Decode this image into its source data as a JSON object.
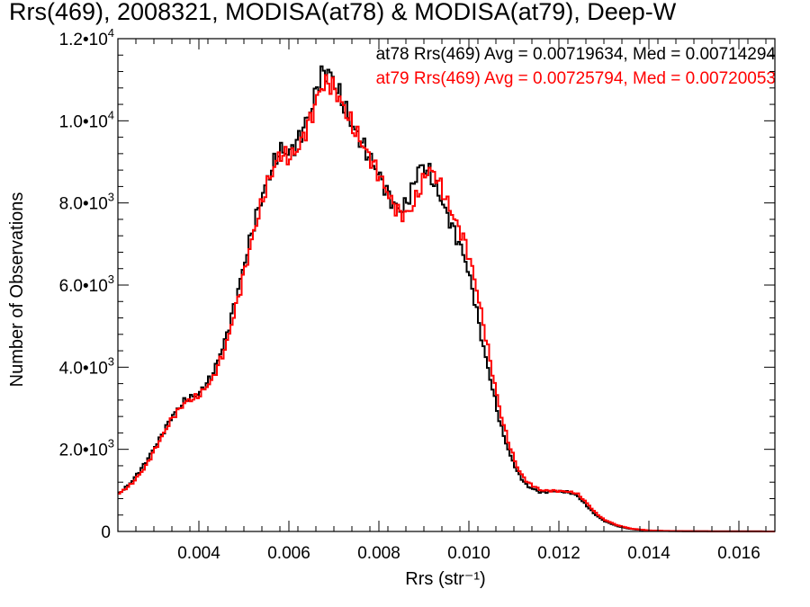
{
  "chart_data": {
    "type": "line",
    "title": "Rrs(469), 2008321, MODISA(at78) & MODISA(at79), Deep-W",
    "xlabel": "Rrs (str⁻¹)",
    "ylabel": "Number of Observations",
    "xlim": [
      0.0022,
      0.0168
    ],
    "ylim": [
      0,
      12000
    ],
    "x_ticks": [
      {
        "v": 0.004,
        "label": "0.004"
      },
      {
        "v": 0.006,
        "label": "0.006"
      },
      {
        "v": 0.008,
        "label": "0.008"
      },
      {
        "v": 0.01,
        "label": "0.010"
      },
      {
        "v": 0.012,
        "label": "0.012"
      },
      {
        "v": 0.014,
        "label": "0.014"
      },
      {
        "v": 0.016,
        "label": "0.016"
      }
    ],
    "y_ticks": [
      {
        "v": 0,
        "mant": "0",
        "exp": ""
      },
      {
        "v": 2000,
        "mant": "2.0•10",
        "exp": "3"
      },
      {
        "v": 4000,
        "mant": "4.0•10",
        "exp": "3"
      },
      {
        "v": 6000,
        "mant": "6.0•10",
        "exp": "3"
      },
      {
        "v": 8000,
        "mant": "8.0•10",
        "exp": "3"
      },
      {
        "v": 10000,
        "mant": "1.0•10",
        "exp": "4"
      },
      {
        "v": 12000,
        "mant": "1.2•10",
        "exp": "4"
      }
    ],
    "annotations": [
      {
        "text": "at78 Rrs(469) Avg = 0.00719634, Med = 0.00714294",
        "color": "#000000"
      },
      {
        "text": "at79 Rrs(469) Avg = 0.00725794, Med = 0.00720053",
        "color": "#ff0000"
      }
    ],
    "series": [
      {
        "color": "#000000",
        "step": "histogram",
        "points": [
          [
            0.0022,
            900
          ],
          [
            0.0025,
            1200
          ],
          [
            0.0028,
            1650
          ],
          [
            0.0031,
            2200
          ],
          [
            0.0034,
            2800
          ],
          [
            0.0037,
            3200
          ],
          [
            0.004,
            3350
          ],
          [
            0.0043,
            3800
          ],
          [
            0.0046,
            4700
          ],
          [
            0.0049,
            6000
          ],
          [
            0.0052,
            7400
          ],
          [
            0.0055,
            8500
          ],
          [
            0.0058,
            9300
          ],
          [
            0.006,
            9200
          ],
          [
            0.0062,
            9500
          ],
          [
            0.0065,
            10300
          ],
          [
            0.0067,
            11100
          ],
          [
            0.0069,
            11200
          ],
          [
            0.0071,
            10700
          ],
          [
            0.0074,
            9900
          ],
          [
            0.0077,
            9300
          ],
          [
            0.008,
            8700
          ],
          [
            0.0083,
            8000
          ],
          [
            0.0085,
            7800
          ],
          [
            0.0087,
            8200
          ],
          [
            0.0089,
            8900
          ],
          [
            0.0091,
            8800
          ],
          [
            0.0093,
            8300
          ],
          [
            0.0096,
            7500
          ],
          [
            0.0099,
            6700
          ],
          [
            0.0101,
            5800
          ],
          [
            0.0103,
            4600
          ],
          [
            0.0105,
            3600
          ],
          [
            0.0107,
            2600
          ],
          [
            0.0109,
            1900
          ],
          [
            0.0111,
            1400
          ],
          [
            0.0113,
            1100
          ],
          [
            0.0116,
            950
          ],
          [
            0.0119,
            980
          ],
          [
            0.0122,
            960
          ],
          [
            0.0124,
            880
          ],
          [
            0.0126,
            650
          ],
          [
            0.0128,
            420
          ],
          [
            0.013,
            260
          ],
          [
            0.0133,
            130
          ],
          [
            0.0136,
            60
          ],
          [
            0.014,
            20
          ],
          [
            0.0145,
            8
          ],
          [
            0.0155,
            3
          ],
          [
            0.0168,
            1
          ]
        ]
      },
      {
        "color": "#ff0000",
        "step": "histogram",
        "points": [
          [
            0.0022,
            900
          ],
          [
            0.0025,
            1150
          ],
          [
            0.0028,
            1550
          ],
          [
            0.0031,
            2150
          ],
          [
            0.0034,
            2750
          ],
          [
            0.0037,
            3150
          ],
          [
            0.004,
            3300
          ],
          [
            0.0043,
            3700
          ],
          [
            0.0046,
            4500
          ],
          [
            0.0049,
            5800
          ],
          [
            0.0052,
            7200
          ],
          [
            0.0055,
            8400
          ],
          [
            0.0058,
            9200
          ],
          [
            0.006,
            9100
          ],
          [
            0.0062,
            9300
          ],
          [
            0.0065,
            10100
          ],
          [
            0.0067,
            10800
          ],
          [
            0.0069,
            10950
          ],
          [
            0.0071,
            10600
          ],
          [
            0.0074,
            9900
          ],
          [
            0.0077,
            9300
          ],
          [
            0.008,
            8700
          ],
          [
            0.0083,
            8000
          ],
          [
            0.0085,
            7700
          ],
          [
            0.0087,
            7800
          ],
          [
            0.0089,
            8300
          ],
          [
            0.0091,
            8850
          ],
          [
            0.0093,
            8600
          ],
          [
            0.0096,
            7800
          ],
          [
            0.0099,
            7100
          ],
          [
            0.0101,
            6300
          ],
          [
            0.0103,
            5200
          ],
          [
            0.0105,
            4000
          ],
          [
            0.0107,
            2900
          ],
          [
            0.0109,
            2100
          ],
          [
            0.0111,
            1500
          ],
          [
            0.0113,
            1200
          ],
          [
            0.0116,
            1000
          ],
          [
            0.0119,
            990
          ],
          [
            0.0122,
            970
          ],
          [
            0.0124,
            930
          ],
          [
            0.0126,
            720
          ],
          [
            0.0128,
            470
          ],
          [
            0.013,
            290
          ],
          [
            0.0133,
            150
          ],
          [
            0.0136,
            70
          ],
          [
            0.014,
            25
          ],
          [
            0.0145,
            10
          ],
          [
            0.0155,
            3
          ],
          [
            0.0168,
            1
          ]
        ]
      }
    ]
  }
}
